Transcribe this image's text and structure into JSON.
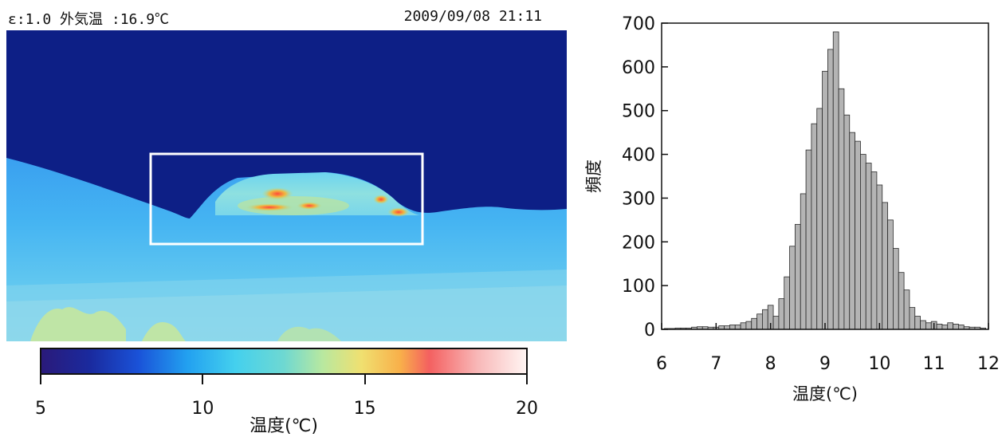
{
  "thermal": {
    "header_left": "ε:1.0 外気温 :16.9℃",
    "header_right": "2009/09/08 21:11"
  },
  "colorbar": {
    "ticks": [
      "5",
      "10",
      "15",
      "20"
    ],
    "xlabel": "温度(℃)",
    "min": 5,
    "max": 20
  },
  "chart_data": {
    "type": "bar",
    "xlabel": "温度(℃)",
    "ylabel": "頻度",
    "xlim": [
      6,
      12
    ],
    "ylim": [
      0,
      700
    ],
    "xticks": [
      "6",
      "7",
      "8",
      "9",
      "10",
      "11",
      "12"
    ],
    "yticks": [
      "0",
      "100",
      "200",
      "300",
      "400",
      "500",
      "600",
      "700"
    ],
    "bin_width": 0.1,
    "x": [
      6.1,
      6.2,
      6.3,
      6.4,
      6.5,
      6.6,
      6.7,
      6.8,
      6.9,
      7.0,
      7.1,
      7.2,
      7.3,
      7.4,
      7.5,
      7.6,
      7.7,
      7.8,
      7.9,
      8.0,
      8.1,
      8.2,
      8.3,
      8.4,
      8.5,
      8.6,
      8.7,
      8.8,
      8.9,
      9.0,
      9.1,
      9.2,
      9.3,
      9.4,
      9.5,
      9.6,
      9.7,
      9.8,
      9.9,
      10.0,
      10.1,
      10.2,
      10.3,
      10.4,
      10.5,
      10.6,
      10.7,
      10.8,
      10.9,
      11.0,
      11.1,
      11.2,
      11.3,
      11.4,
      11.5,
      11.6,
      11.7,
      11.8,
      11.9
    ],
    "values": [
      2,
      2,
      3,
      3,
      3,
      5,
      6,
      6,
      5,
      5,
      8,
      8,
      10,
      10,
      15,
      18,
      25,
      35,
      45,
      55,
      30,
      70,
      120,
      190,
      240,
      310,
      410,
      470,
      505,
      590,
      640,
      680,
      550,
      490,
      450,
      430,
      400,
      380,
      360,
      330,
      290,
      250,
      185,
      130,
      90,
      50,
      30,
      20,
      15,
      18,
      12,
      10,
      15,
      12,
      10,
      6,
      5,
      5,
      3
    ]
  }
}
